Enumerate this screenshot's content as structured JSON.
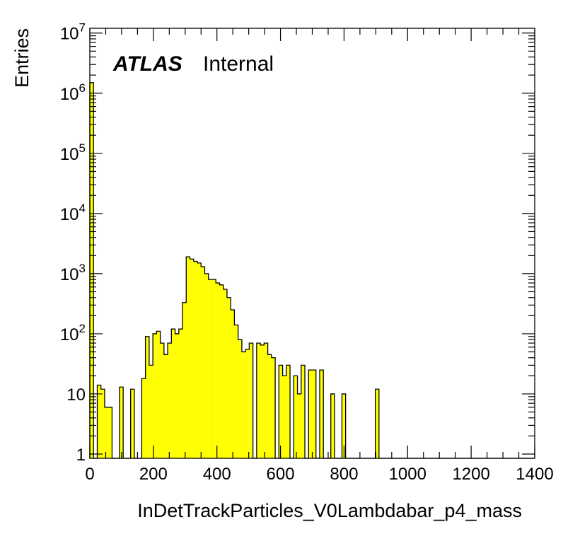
{
  "chart_data": {
    "type": "bar",
    "style": "histogram",
    "title": "",
    "xlabel": "InDetTrackParticles_V0Lambdabar_p4_mass",
    "ylabel": "Entries",
    "annotation": {
      "experiment": "ATLAS",
      "status": "Internal"
    },
    "xlim": [
      0,
      1400
    ],
    "ylim": [
      0.85,
      12000000
    ],
    "yscale": "log",
    "bin_width": 11.67,
    "x_ticks": [
      "0",
      "200",
      "400",
      "600",
      "800",
      "1000",
      "1200",
      "1400"
    ],
    "y_ticks": [
      {
        "base": "1",
        "exp": ""
      },
      {
        "base": "10",
        "exp": ""
      },
      {
        "base": "10",
        "exp": "2"
      },
      {
        "base": "10",
        "exp": "3"
      },
      {
        "base": "10",
        "exp": "4"
      },
      {
        "base": "10",
        "exp": "5"
      },
      {
        "base": "10",
        "exp": "6"
      },
      {
        "base": "10",
        "exp": "7"
      }
    ],
    "fill_color": "#ffff00",
    "line_color": "#000000",
    "grid": false,
    "x": [
      5.8,
      17.5,
      29.2,
      40.8,
      52.5,
      64.2,
      75.8,
      87.5,
      99.2,
      110.8,
      122.5,
      134.2,
      145.8,
      157.5,
      169.2,
      180.8,
      192.5,
      204.2,
      215.8,
      227.5,
      239.2,
      250.8,
      262.5,
      274.2,
      285.8,
      297.5,
      309.2,
      320.8,
      332.5,
      344.2,
      355.8,
      367.5,
      379.2,
      390.8,
      402.5,
      414.2,
      425.8,
      437.5,
      449.2,
      460.8,
      472.5,
      484.2,
      495.8,
      507.5,
      519.2,
      530.8,
      542.5,
      554.2,
      565.8,
      577.5,
      589.2,
      600.8,
      612.5,
      624.2,
      635.8,
      647.5,
      659.2,
      670.8,
      682.5,
      694.2,
      705.8,
      717.5,
      729.2,
      740.8,
      752.5,
      764.2,
      775.8,
      787.5,
      799.2,
      810.8,
      822.5,
      834.2,
      845.8,
      857.5,
      869.2,
      880.8,
      892.5,
      904.2,
      915.8,
      927.5,
      939.2,
      950.8,
      962.5,
      974.2,
      985.8,
      997.5,
      1009.2,
      1020.8,
      1032.5,
      1044.2,
      1055.8,
      1067.5,
      1079.2,
      1090.8,
      1102.5,
      1114.2,
      1125.8,
      1137.5,
      1149.2,
      1160.8,
      1172.5,
      1184.2,
      1195.8,
      1207.5,
      1219.2,
      1230.8,
      1242.5,
      1254.2,
      1265.8,
      1277.5,
      1289.2,
      1300.8,
      1312.5,
      1324.2,
      1335.8,
      1347.5,
      1359.2,
      1370.8,
      1382.5,
      1394.2
    ],
    "values": [
      1500000,
      0,
      14,
      12,
      6,
      6,
      0,
      0,
      13,
      0,
      0,
      12,
      0,
      0,
      18,
      90,
      30,
      100,
      110,
      70,
      45,
      70,
      120,
      100,
      120,
      330,
      1900,
      1750,
      1600,
      1500,
      1300,
      1000,
      800,
      800,
      700,
      650,
      550,
      400,
      250,
      140,
      80,
      50,
      55,
      70,
      0,
      70,
      65,
      70,
      45,
      40,
      0,
      30,
      20,
      30,
      0,
      20,
      10,
      30,
      0,
      25,
      25,
      0,
      25,
      0,
      0,
      10,
      0,
      0,
      10,
      0,
      0,
      0,
      0,
      0,
      0,
      0,
      0,
      12,
      0,
      0,
      0,
      0,
      0,
      0,
      0,
      0,
      0,
      0,
      0,
      0,
      0,
      0,
      0,
      0,
      0,
      0,
      0,
      0,
      0,
      0,
      0,
      0,
      0,
      0,
      0,
      0,
      0,
      0,
      0,
      0,
      0,
      0,
      0,
      0,
      0,
      0,
      0,
      0,
      0,
      0
    ]
  }
}
